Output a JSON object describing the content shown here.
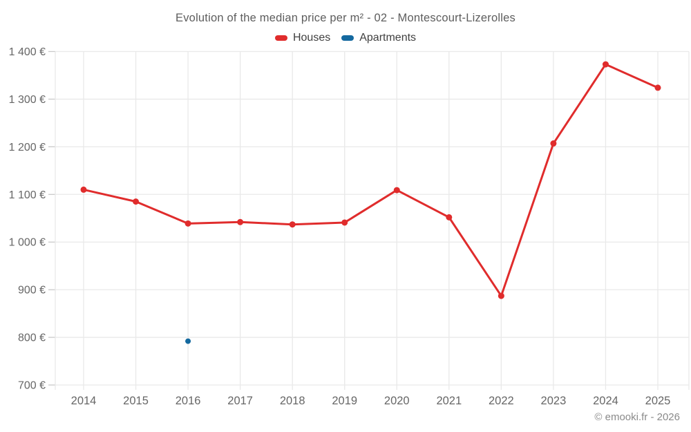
{
  "footer": {
    "credit": "© emooki.fr - 2026"
  },
  "chart_data": {
    "type": "line",
    "title": "Evolution of the median price per m² - 02 - Montescourt-Lizerolles",
    "x": [
      "2014",
      "2015",
      "2016",
      "2017",
      "2018",
      "2019",
      "2020",
      "2021",
      "2022",
      "2023",
      "2024",
      "2025"
    ],
    "series": [
      {
        "name": "Houses",
        "color": "#e02c2c",
        "marker": "circle",
        "values": [
          1110,
          1085,
          1039,
          1042,
          1037,
          1041,
          1109,
          1052,
          887,
          1207,
          1373,
          1324
        ]
      },
      {
        "name": "Apartments",
        "color": "#14699f",
        "marker": "circle",
        "points_only": true,
        "values": [
          null,
          null,
          792,
          null,
          null,
          null,
          null,
          null,
          null,
          null,
          null,
          null
        ]
      }
    ],
    "xlabel": "",
    "ylabel": "",
    "ylim": [
      700,
      1400
    ],
    "ytick_step": 100,
    "y_suffix": "€",
    "grid": true,
    "legend_position": "top"
  }
}
